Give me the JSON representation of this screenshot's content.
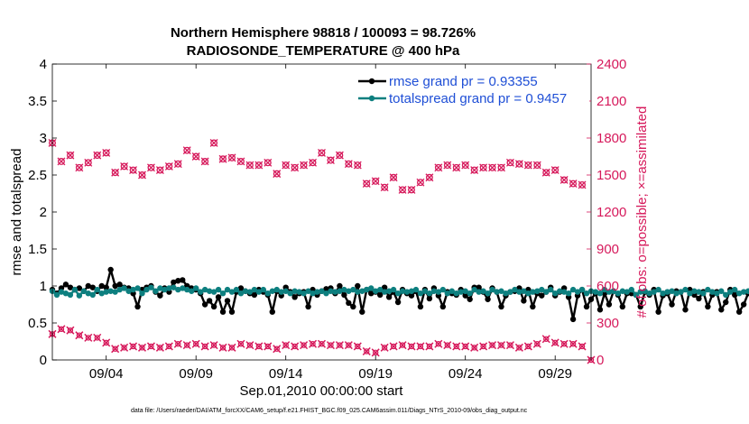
{
  "chart_data": {
    "type": "line",
    "title": [
      "Northern Hemisphere 98818 / 100093 = 98.726%",
      "RADIOSONDE_TEMPERATURE @ 400 hPa"
    ],
    "xlabel": "Sep.01,2010 00:00:00 start",
    "ylabel_left": "rmse and totalspread",
    "ylabel_right": "# of obs: o=possible; ×=assimilated",
    "footnote": "data file: /Users/raeder/DAI/ATM_forcXX/CAM6_setup/f.e21.FHIST_BGC.f09_025.CAM6assim.011/Diags_NTrS_2010-09/obs_diag_output.nc",
    "xlim": [
      1,
      31
    ],
    "x_ticks": [
      4,
      9,
      14,
      19,
      24,
      29
    ],
    "x_tick_labels": [
      "09/04",
      "09/09",
      "09/14",
      "09/19",
      "09/24",
      "09/29"
    ],
    "ylim_left": [
      0,
      4
    ],
    "y_ticks_left": [
      "0",
      "0.5",
      "1",
      "1.5",
      "2",
      "2.5",
      "3",
      "3.5",
      "4"
    ],
    "ylim_right": [
      0,
      2400
    ],
    "y_ticks_right": [
      "0",
      "300",
      "600",
      "900",
      "1200",
      "1500",
      "1800",
      "2100",
      "2400"
    ],
    "grid": false,
    "legend_position": "top-right",
    "colors": {
      "rmse": "#000000",
      "spread": "#0d7f7f",
      "obs": "#d6195b",
      "legend_text": "#1f4fd6"
    },
    "series": [
      {
        "name": "rmse grand pr = 0.93355",
        "axis": "left",
        "x_start": 1,
        "x_step": 0.25,
        "values": [
          0.95,
          0.9,
          0.97,
          1.02,
          0.98,
          0.95,
          0.97,
          0.93,
          1.0,
          0.98,
          0.93,
          1.0,
          0.98,
          1.22,
          1.0,
          1.02,
          0.98,
          0.97,
          0.9,
          0.72,
          0.95,
          0.98,
          1.0,
          0.92,
          0.87,
          0.97,
          0.92,
          1.05,
          1.07,
          1.08,
          1.0,
          0.97,
          0.95,
          0.9,
          0.75,
          0.8,
          0.72,
          0.85,
          0.65,
          0.8,
          0.65,
          0.92,
          0.97,
          0.93,
          0.9,
          0.88,
          0.95,
          0.92,
          0.88,
          0.65,
          0.93,
          0.87,
          0.98,
          0.92,
          0.85,
          0.9,
          0.92,
          0.72,
          0.95,
          0.88,
          0.93,
          0.96,
          0.97,
          0.9,
          1.0,
          0.88,
          0.77,
          0.72,
          1.0,
          0.65,
          0.95,
          0.9,
          0.92,
          0.88,
          0.98,
          0.85,
          0.92,
          0.78,
          0.95,
          0.9,
          0.87,
          0.93,
          0.72,
          0.95,
          0.83,
          0.97,
          0.87,
          0.72,
          0.92,
          0.9,
          0.88,
          0.95,
          0.87,
          0.82,
          0.98,
          0.98,
          0.92,
          0.82,
          0.97,
          0.92,
          0.72,
          0.87,
          0.92,
          0.93,
          0.97,
          0.8,
          0.95,
          0.72,
          0.9,
          0.87,
          0.92,
          0.98,
          0.87,
          0.92,
          0.97,
          0.85,
          0.55,
          0.87,
          0.95,
          0.72,
          0.82,
          0.9,
          0.68,
          0.9,
          0.75,
          0.93,
          0.88,
          0.72,
          0.9,
          0.9,
          0.88,
          0.72,
          0.92,
          0.88,
          0.95,
          0.65,
          0.87,
          0.9,
          0.75,
          0.93,
          0.92,
          0.68,
          0.95,
          0.88,
          0.83,
          0.92,
          0.72,
          0.88,
          0.92,
          0.68,
          0.78,
          0.95,
          0.88,
          0.65,
          0.75,
          0.9,
          0.95,
          0.72
        ]
      },
      {
        "name": "totalspread grand pr = 0.9457",
        "axis": "left",
        "x_start": 1,
        "x_step": 0.25,
        "values": [
          0.93,
          0.88,
          0.92,
          0.9,
          0.88,
          0.95,
          0.87,
          0.93,
          0.9,
          0.88,
          0.95,
          0.9,
          0.92,
          0.93,
          0.92,
          0.95,
          0.97,
          0.93,
          0.95,
          0.97,
          0.9,
          0.95,
          0.98,
          0.93,
          0.97,
          0.95,
          0.97,
          0.98,
          0.95,
          0.97,
          0.95,
          0.93,
          0.97,
          0.92,
          0.95,
          0.93,
          0.92,
          0.95,
          0.9,
          0.95,
          0.92,
          0.95,
          0.9,
          0.93,
          0.92,
          0.95,
          0.92,
          0.95,
          0.9,
          0.93,
          0.95,
          0.92,
          0.93,
          0.9,
          0.93,
          0.92,
          0.9,
          0.93,
          0.9,
          0.92,
          0.93,
          0.9,
          0.93,
          0.92,
          0.93,
          0.95,
          0.93,
          0.95,
          0.92,
          0.93,
          0.95,
          0.97,
          0.93,
          0.95,
          0.92,
          0.93,
          0.95,
          0.9,
          0.93,
          0.92,
          0.93,
          0.95,
          0.9,
          0.93,
          0.9,
          0.93,
          0.92,
          0.95,
          0.9,
          0.93,
          0.9,
          0.92,
          0.93,
          0.9,
          0.95,
          0.92,
          0.93,
          0.9,
          0.95,
          0.92,
          0.93,
          0.9,
          0.92,
          0.95,
          0.92,
          0.93,
          0.9,
          0.92,
          0.93,
          0.95,
          0.92,
          0.95,
          0.9,
          0.93,
          0.92,
          0.9,
          0.95,
          0.92,
          0.95,
          0.9,
          0.93,
          0.92,
          0.9,
          0.95,
          0.92,
          0.93,
          0.9,
          0.93,
          0.92,
          0.95,
          0.88,
          0.92,
          0.93,
          0.9,
          0.92,
          0.95,
          0.9,
          0.92,
          0.93,
          0.9,
          0.92,
          0.95,
          0.9,
          0.93,
          0.92,
          0.9,
          0.95,
          0.92,
          0.9,
          0.93,
          0.88,
          0.92,
          0.95,
          0.9,
          0.92,
          0.93,
          0.9,
          0.88
        ]
      },
      {
        "name": "obs possible",
        "axis": "right",
        "marker": "o",
        "x": [
          1,
          1.5,
          2,
          2.5,
          3,
          3.5,
          4,
          4.5,
          5,
          5.5,
          6,
          6.5,
          7,
          7.5,
          8,
          8.5,
          9,
          9.5,
          10,
          10.5,
          11,
          11.5,
          12,
          12.5,
          13,
          13.5,
          14,
          14.5,
          15,
          15.5,
          16,
          16.5,
          17,
          17.5,
          18,
          18.5,
          19,
          19.5,
          20,
          20.5,
          21,
          21.5,
          22,
          22.5,
          23,
          23.5,
          24,
          24.5,
          25,
          25.5,
          26,
          26.5,
          27,
          27.5,
          28,
          28.5,
          29,
          29.5,
          30,
          30.5
        ],
        "values": [
          1760,
          1610,
          1660,
          1560,
          1600,
          1660,
          1680,
          1520,
          1570,
          1540,
          1500,
          1560,
          1540,
          1570,
          1590,
          1700,
          1650,
          1610,
          1760,
          1630,
          1640,
          1610,
          1580,
          1580,
          1600,
          1510,
          1580,
          1560,
          1580,
          1600,
          1680,
          1620,
          1660,
          1590,
          1580,
          1430,
          1450,
          1400,
          1480,
          1380,
          1380,
          1440,
          1480,
          1560,
          1580,
          1560,
          1580,
          1540,
          1560,
          1560,
          1560,
          1600,
          1590,
          1580,
          1580,
          1520,
          1540,
          1460,
          1430,
          1420
        ]
      },
      {
        "name": "obs assimilated",
        "axis": "right",
        "marker": "x",
        "x": [
          1,
          1.5,
          2,
          2.5,
          3,
          3.5,
          4,
          4.5,
          5,
          5.5,
          6,
          6.5,
          7,
          7.5,
          8,
          8.5,
          9,
          9.5,
          10,
          10.5,
          11,
          11.5,
          12,
          12.5,
          13,
          13.5,
          14,
          14.5,
          15,
          15.5,
          16,
          16.5,
          17,
          17.5,
          18,
          18.5,
          19,
          19.5,
          20,
          20.5,
          21,
          21.5,
          22,
          22.5,
          23,
          23.5,
          24,
          24.5,
          25,
          25.5,
          26,
          26.5,
          27,
          27.5,
          28,
          28.5,
          29,
          29.5,
          30,
          30.5,
          31
        ],
        "values": [
          210,
          250,
          240,
          200,
          180,
          180,
          140,
          90,
          100,
          110,
          100,
          110,
          100,
          110,
          130,
          120,
          130,
          110,
          120,
          100,
          100,
          130,
          120,
          110,
          110,
          90,
          120,
          110,
          120,
          130,
          130,
          120,
          120,
          120,
          110,
          70,
          60,
          100,
          110,
          120,
          110,
          110,
          110,
          130,
          120,
          110,
          110,
          100,
          110,
          120,
          120,
          120,
          100,
          110,
          130,
          170,
          140,
          130,
          130,
          110,
          0
        ]
      }
    ]
  }
}
